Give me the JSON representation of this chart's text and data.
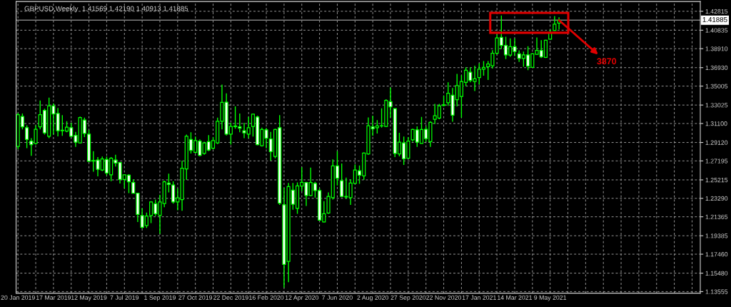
{
  "chart_data": {
    "type": "candlestick",
    "title": "GBPUSD,Weekly  1.41569 1.42190 1.40913 1.41885",
    "color": "#00ff00",
    "x": [
      "2019-01-20",
      "2019-01-27",
      "2019-02-03",
      "2019-02-10",
      "2019-02-17",
      "2019-02-24",
      "2019-03-03",
      "2019-03-10",
      "2019-03-17",
      "2019-03-24",
      "2019-03-31",
      "2019-04-07",
      "2019-04-14",
      "2019-04-21",
      "2019-04-28",
      "2019-05-05",
      "2019-05-12",
      "2019-05-19",
      "2019-05-26",
      "2019-06-02",
      "2019-06-09",
      "2019-06-16",
      "2019-06-23",
      "2019-06-30",
      "2019-07-07",
      "2019-07-14",
      "2019-07-21",
      "2019-07-28",
      "2019-08-04",
      "2019-08-11",
      "2019-08-18",
      "2019-08-25",
      "2019-09-01",
      "2019-09-08",
      "2019-09-15",
      "2019-09-22",
      "2019-09-29",
      "2019-10-06",
      "2019-10-13",
      "2019-10-20",
      "2019-10-27",
      "2019-11-03",
      "2019-11-10",
      "2019-11-17",
      "2019-11-24",
      "2019-12-01",
      "2019-12-08",
      "2019-12-15",
      "2019-12-22",
      "2019-12-29",
      "2020-01-05",
      "2020-01-12",
      "2020-01-19",
      "2020-01-26",
      "2020-02-02",
      "2020-02-09",
      "2020-02-16",
      "2020-02-23",
      "2020-03-01",
      "2020-03-08",
      "2020-03-15",
      "2020-03-22",
      "2020-03-29",
      "2020-04-05",
      "2020-04-12",
      "2020-04-19",
      "2020-04-26",
      "2020-05-03",
      "2020-05-10",
      "2020-05-17",
      "2020-05-24",
      "2020-05-31",
      "2020-06-07",
      "2020-06-14",
      "2020-06-21",
      "2020-06-28",
      "2020-07-05",
      "2020-07-12",
      "2020-07-19",
      "2020-07-26",
      "2020-08-02",
      "2020-08-09",
      "2020-08-16",
      "2020-08-23",
      "2020-08-30",
      "2020-09-06",
      "2020-09-13",
      "2020-09-20",
      "2020-09-27",
      "2020-10-04",
      "2020-10-11",
      "2020-10-18",
      "2020-10-25",
      "2020-11-01",
      "2020-11-08",
      "2020-11-15",
      "2020-11-22",
      "2020-11-29",
      "2020-12-06",
      "2020-12-13",
      "2020-12-20",
      "2020-12-27",
      "2021-01-03",
      "2021-01-10",
      "2021-01-17",
      "2021-01-24",
      "2021-01-31",
      "2021-02-07",
      "2021-02-14",
      "2021-02-21",
      "2021-02-28",
      "2021-03-07",
      "2021-03-14",
      "2021-03-21",
      "2021-03-28",
      "2021-04-04",
      "2021-04-11",
      "2021-04-18",
      "2021-04-25",
      "2021-05-02",
      "2021-05-09",
      "2021-05-16",
      "2021-05-23"
    ],
    "ohlc": [
      [
        1.287,
        1.322,
        1.2841,
        1.3203
      ],
      [
        1.3183,
        1.3215,
        1.3048,
        1.3075
      ],
      [
        1.3067,
        1.3092,
        1.2853,
        1.2944
      ],
      [
        1.2927,
        1.2957,
        1.2772,
        1.289
      ],
      [
        1.2902,
        1.3092,
        1.289,
        1.305
      ],
      [
        1.3075,
        1.3351,
        1.3048,
        1.3203
      ],
      [
        1.3247,
        1.3265,
        1.2994,
        1.3013
      ],
      [
        1.2976,
        1.338,
        1.2957,
        1.3294
      ],
      [
        1.3294,
        1.3321,
        1.2994,
        1.321
      ],
      [
        1.3215,
        1.3272,
        1.2976,
        1.3035
      ],
      [
        1.304,
        1.3198,
        1.2981,
        1.3035
      ],
      [
        1.3031,
        1.3134,
        1.3018,
        1.3072
      ],
      [
        1.3067,
        1.3117,
        1.2964,
        1.2976
      ],
      [
        1.2986,
        1.3023,
        1.2866,
        1.2915
      ],
      [
        1.2907,
        1.3183,
        1.2902,
        1.3173
      ],
      [
        1.3146,
        1.3171,
        1.2969,
        1.3006
      ],
      [
        1.2999,
        1.3043,
        1.271,
        1.2715
      ],
      [
        1.2718,
        1.2821,
        1.2607,
        1.2723
      ],
      [
        1.2728,
        1.276,
        1.2558,
        1.2632
      ],
      [
        1.2624,
        1.2765,
        1.2612,
        1.274
      ],
      [
        1.2735,
        1.2765,
        1.257,
        1.2592
      ],
      [
        1.2575,
        1.276,
        1.2508,
        1.2747
      ],
      [
        1.2728,
        1.2784,
        1.2661,
        1.2698
      ],
      [
        1.2703,
        1.271,
        1.2484,
        1.2526
      ],
      [
        1.2526,
        1.258,
        1.2434,
        1.2575
      ],
      [
        1.257,
        1.258,
        1.2383,
        1.2501
      ],
      [
        1.2494,
        1.2526,
        1.2378,
        1.2383
      ],
      [
        1.2383,
        1.2388,
        1.2082,
        1.2161
      ],
      [
        1.2149,
        1.2225,
        1.2013,
        1.2026
      ],
      [
        1.2045,
        1.2181,
        1.2021,
        1.2144
      ],
      [
        1.2149,
        1.2299,
        1.207,
        1.2292
      ],
      [
        1.2272,
        1.2316,
        1.2144,
        1.2168
      ],
      [
        1.2151,
        1.2366,
        1.1959,
        1.2292
      ],
      [
        1.2274,
        1.2513,
        1.2237,
        1.2501
      ],
      [
        1.2489,
        1.2587,
        1.239,
        1.2474
      ],
      [
        1.2469,
        1.2506,
        1.2274,
        1.2292
      ],
      [
        1.2292,
        1.2432,
        1.2205,
        1.2334
      ],
      [
        1.2316,
        1.2723,
        1.2198,
        1.2644
      ],
      [
        1.2636,
        1.2994,
        1.2521,
        1.2976
      ],
      [
        1.2944,
        1.3018,
        1.2797,
        1.2829
      ],
      [
        1.2809,
        1.2974,
        1.2797,
        1.2932
      ],
      [
        1.2927,
        1.2944,
        1.2767,
        1.2777
      ],
      [
        1.2797,
        1.292,
        1.2784,
        1.2907
      ],
      [
        1.292,
        1.2989,
        1.2821,
        1.2833
      ],
      [
        1.2851,
        1.2969,
        1.2841,
        1.2932
      ],
      [
        1.2907,
        1.3171,
        1.2895,
        1.3134
      ],
      [
        1.3134,
        1.3516,
        1.3048,
        1.3331
      ],
      [
        1.3333,
        1.3425,
        1.2986,
        1.2999
      ],
      [
        1.2999,
        1.3117,
        1.289,
        1.308
      ],
      [
        1.3085,
        1.3289,
        1.3055,
        1.3077
      ],
      [
        1.3075,
        1.3215,
        1.3018,
        1.306
      ],
      [
        1.3035,
        1.3117,
        1.2957,
        1.3013
      ],
      [
        1.2999,
        1.3178,
        1.2957,
        1.3067
      ],
      [
        1.308,
        1.3215,
        1.2974,
        1.3208
      ],
      [
        1.3178,
        1.3191,
        1.2883,
        1.289
      ],
      [
        1.2878,
        1.3067,
        1.287,
        1.3048
      ],
      [
        1.3043,
        1.3063,
        1.2851,
        1.2957
      ],
      [
        1.2949,
        1.3023,
        1.2723,
        1.2816
      ],
      [
        1.2767,
        1.3055,
        1.2747,
        1.3048
      ],
      [
        1.3067,
        1.3198,
        1.226,
        1.2279
      ],
      [
        1.2262,
        1.2439,
        1.1398,
        1.1639
      ],
      [
        1.1671,
        1.2489,
        1.1454,
        1.2452
      ],
      [
        1.2415,
        1.2489,
        1.221,
        1.2267
      ],
      [
        1.2225,
        1.2496,
        1.2168,
        1.2459
      ],
      [
        1.2457,
        1.2654,
        1.2402,
        1.2496
      ],
      [
        1.2494,
        1.2501,
        1.225,
        1.2358
      ],
      [
        1.2358,
        1.2649,
        1.2353,
        1.2494
      ],
      [
        1.2484,
        1.2501,
        1.2336,
        1.241
      ],
      [
        1.241,
        1.2434,
        1.2095,
        1.2102
      ],
      [
        1.2082,
        1.2299,
        1.2077,
        1.2168
      ],
      [
        1.2176,
        1.239,
        1.2168,
        1.2348
      ],
      [
        1.2336,
        1.2735,
        1.2316,
        1.2668
      ],
      [
        1.2668,
        1.2821,
        1.2464,
        1.2538
      ],
      [
        1.2513,
        1.2693,
        1.2341,
        1.2348
      ],
      [
        1.2348,
        1.2545,
        1.2324,
        1.2343
      ],
      [
        1.2336,
        1.2526,
        1.226,
        1.2489
      ],
      [
        1.2484,
        1.2681,
        1.2481,
        1.2624
      ],
      [
        1.2617,
        1.2673,
        1.2481,
        1.257
      ],
      [
        1.2563,
        1.2809,
        1.2521,
        1.2801
      ],
      [
        1.2792,
        1.3173,
        1.2784,
        1.3087
      ],
      [
        1.3075,
        1.3191,
        1.2981,
        1.3055
      ],
      [
        1.3067,
        1.3146,
        1.3006,
        1.3085
      ],
      [
        1.3085,
        1.3269,
        1.3067,
        1.3087
      ],
      [
        1.308,
        1.3363,
        1.3075,
        1.3351
      ],
      [
        1.3338,
        1.3486,
        1.3173,
        1.3284
      ],
      [
        1.3265,
        1.3269,
        1.276,
        1.2797
      ],
      [
        1.2792,
        1.3013,
        1.2767,
        1.2915
      ],
      [
        1.2907,
        1.2974,
        1.2678,
        1.2742
      ],
      [
        1.2747,
        1.2969,
        1.2742,
        1.2927
      ],
      [
        1.2939,
        1.3055,
        1.292,
        1.3048
      ],
      [
        1.3043,
        1.308,
        1.2866,
        1.2915
      ],
      [
        1.2902,
        1.3178,
        1.29,
        1.3048
      ],
      [
        1.305,
        1.308,
        1.292,
        1.2952
      ],
      [
        1.292,
        1.3134,
        1.2866,
        1.3122
      ],
      [
        1.3154,
        1.3314,
        1.3104,
        1.3191
      ],
      [
        1.3166,
        1.3314,
        1.3154,
        1.3294
      ],
      [
        1.3299,
        1.34,
        1.3289,
        1.3304
      ],
      [
        1.3326,
        1.354,
        1.3294,
        1.3425
      ],
      [
        1.3405,
        1.3481,
        1.3129,
        1.3196
      ],
      [
        1.3358,
        1.3627,
        1.3289,
        1.3506
      ],
      [
        1.3393,
        1.3614,
        1.3171,
        1.3548
      ],
      [
        1.354,
        1.3696,
        1.3499,
        1.3666
      ],
      [
        1.3646,
        1.3696,
        1.354,
        1.356
      ],
      [
        1.3548,
        1.3713,
        1.3449,
        1.3577
      ],
      [
        1.359,
        1.3737,
        1.3518,
        1.3678
      ],
      [
        1.3678,
        1.3762,
        1.3609,
        1.3696
      ],
      [
        1.3703,
        1.3762,
        1.3565,
        1.3732
      ],
      [
        1.3713,
        1.3875,
        1.3683,
        1.3843
      ],
      [
        1.3843,
        1.404,
        1.3831,
        1.4003
      ],
      [
        1.4008,
        1.4237,
        1.3888,
        1.3925
      ],
      [
        1.3925,
        1.4016,
        1.3782,
        1.3826
      ],
      [
        1.3824,
        1.3998,
        1.3806,
        1.3912
      ],
      [
        1.3912,
        1.3998,
        1.3814,
        1.3861
      ],
      [
        1.3838,
        1.3873,
        1.3752,
        1.3789
      ],
      [
        1.3789,
        1.3861,
        1.3703,
        1.3826
      ],
      [
        1.3826,
        1.3917,
        1.3666,
        1.3708
      ],
      [
        1.3696,
        1.3843,
        1.3691,
        1.3838
      ],
      [
        1.3831,
        1.4008,
        1.3826,
        1.3873
      ],
      [
        1.3873,
        1.3979,
        1.3794,
        1.3806
      ],
      [
        1.3801,
        1.3984,
        1.3794,
        1.3979
      ],
      [
        1.3991,
        1.409,
        1.3986,
        1.406
      ],
      [
        1.4082,
        1.4232,
        1.4077,
        1.4146
      ],
      [
        1.41569,
        1.4219,
        1.40913,
        1.41885
      ]
    ],
    "xlim": [
      "2019-01-17",
      "2022-01-01"
    ],
    "xticks": [
      {
        "value": "2019-01-20",
        "label": "20 Jan 2019"
      },
      {
        "value": "2019-02-17",
        "label": null
      },
      {
        "value": "2019-03-17",
        "label": "17 Mar 2019"
      },
      {
        "value": "2019-04-14",
        "label": null
      },
      {
        "value": "2019-05-12",
        "label": "12 May 2019"
      },
      {
        "value": "2019-06-09",
        "label": null
      },
      {
        "value": "2019-07-07",
        "label": "7 Jul 2019"
      },
      {
        "value": "2019-08-04",
        "label": null
      },
      {
        "value": "2019-09-01",
        "label": "1 Sep 2019"
      },
      {
        "value": "2019-09-29",
        "label": null
      },
      {
        "value": "2019-10-27",
        "label": "27 Oct 2019"
      },
      {
        "value": "2019-11-24",
        "label": null
      },
      {
        "value": "2019-12-22",
        "label": "22 Dec 2019"
      },
      {
        "value": "2020-01-19",
        "label": null
      },
      {
        "value": "2020-02-16",
        "label": "16 Feb 2020"
      },
      {
        "value": "2020-03-15",
        "label": null
      },
      {
        "value": "2020-04-12",
        "label": "12 Apr 2020"
      },
      {
        "value": "2020-05-10",
        "label": null
      },
      {
        "value": "2020-06-07",
        "label": "7 Jun 2020"
      },
      {
        "value": "2020-07-05",
        "label": null
      },
      {
        "value": "2020-08-02",
        "label": "2 Aug 2020"
      },
      {
        "value": "2020-08-30",
        "label": null
      },
      {
        "value": "2020-09-27",
        "label": "27 Sep 2020"
      },
      {
        "value": "2020-10-25",
        "label": null
      },
      {
        "value": "2020-11-22",
        "label": "22 Nov 2020"
      },
      {
        "value": "2020-12-20",
        "label": null
      },
      {
        "value": "2021-01-17",
        "label": "17 Jan 2021"
      },
      {
        "value": "2021-02-14",
        "label": null
      },
      {
        "value": "2021-03-14",
        "label": "14 Mar 2021"
      },
      {
        "value": "2021-04-11",
        "label": null
      },
      {
        "value": "2021-05-09",
        "label": "9 May 2021"
      },
      {
        "value": "2021-06-06",
        "label": null
      },
      {
        "value": "2021-07-04",
        "label": null
      },
      {
        "value": "2021-08-01",
        "label": null
      },
      {
        "value": "2021-08-29",
        "label": null
      },
      {
        "value": "2021-09-26",
        "label": null
      },
      {
        "value": "2021-10-24",
        "label": null
      },
      {
        "value": "2021-11-21",
        "label": null
      },
      {
        "value": "2021-12-19",
        "label": null
      }
    ],
    "ylim": [
      1.1339,
      1.4383
    ],
    "yticks": [
      1.42815,
      1.40835,
      {
        "value": 1.3891,
        "label": "1.38910"
      },
      {
        "value": 1.3693,
        "label": "1.36930"
      },
      1.35005,
      1.33025,
      {
        "value": 1.311,
        "label": "1.31100"
      },
      {
        "value": 1.2912,
        "label": "1.29120"
      },
      1.27195,
      1.25215,
      {
        "value": 1.2329,
        "label": "1.23290"
      },
      1.21365,
      1.19385,
      {
        "value": 1.1746,
        "label": "1.17460"
      },
      {
        "value": 1.1548,
        "label": "1.15480"
      },
      1.13555
    ],
    "ref_lines": [
      {
        "axis": "y",
        "value": 1.41885,
        "label": "1.41885",
        "color": "#808080"
      }
    ],
    "annotations": [
      {
        "text": "3870",
        "x": "2021-05-23",
        "y": 1.41885
      }
    ],
    "grid": true
  }
}
